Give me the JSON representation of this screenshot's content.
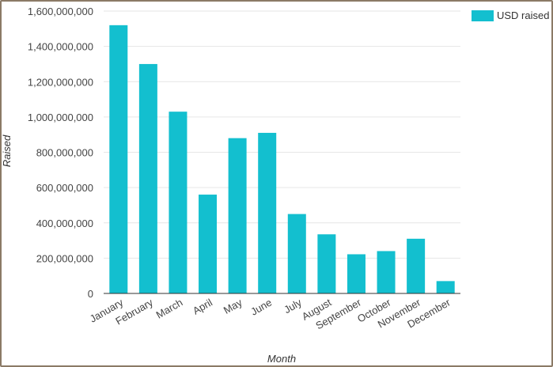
{
  "chart_data": {
    "type": "bar",
    "categories": [
      "January",
      "February",
      "March",
      "April",
      "May",
      "June",
      "July",
      "August",
      "September",
      "October",
      "November",
      "December"
    ],
    "series": [
      {
        "name": "USD raised",
        "values": [
          1520000000,
          1300000000,
          1030000000,
          560000000,
          880000000,
          910000000,
          450000000,
          335000000,
          222000000,
          240000000,
          310000000,
          70000000
        ],
        "color": "#13bfcf"
      }
    ],
    "yticks": [
      "0",
      "200,000,000",
      "400,000,000",
      "600,000,000",
      "800,000,000",
      "1,000,000,000",
      "1,200,000,000",
      "1,400,000,000",
      "1,600,000,000"
    ],
    "ylim": [
      0,
      1600000000
    ],
    "xlabel": "Month",
    "ylabel": "Raised",
    "legend_position": "top-right",
    "grid": true
  }
}
